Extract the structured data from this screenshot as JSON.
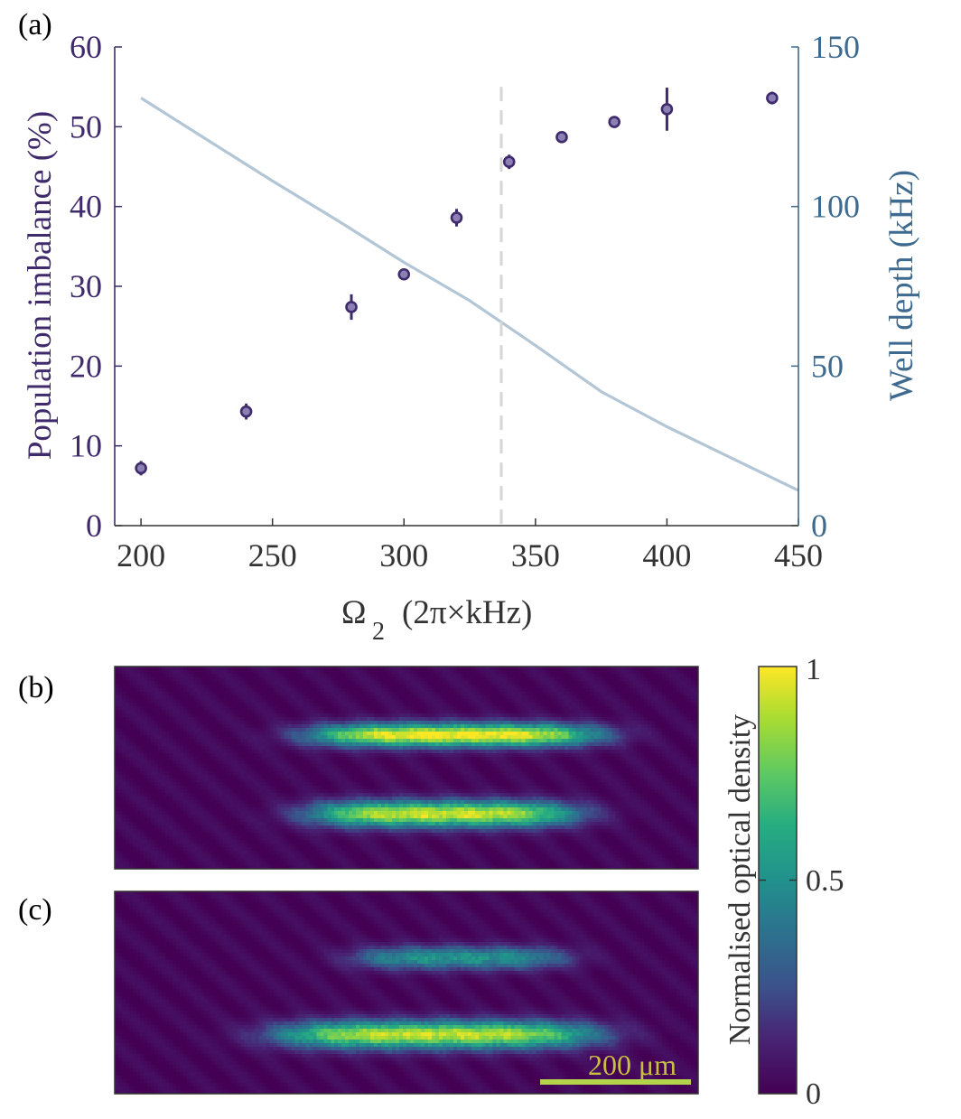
{
  "panels": {
    "a": "(a)",
    "b": "(b)",
    "c": "(c)"
  },
  "colors": {
    "left_axis": "#3f2b6b",
    "right_axis": "#3d6a8e",
    "marker_fill": "#8b7fb3",
    "curve": "#b3c6d6",
    "dashed": "#d6d6d6",
    "axis_dark": "#333333",
    "scalebar": "#b3d44a",
    "scale_text": "#c8c040"
  },
  "chart_data": [
    {
      "type": "scatter",
      "xlabel_symbol": "Ω",
      "xlabel_sub": "2",
      "xlabel_rest": "(2π×kHz)",
      "ylabel": "Population imbalance (%)",
      "y2label": "Well depth (kHz)",
      "xlim": [
        190,
        450
      ],
      "ylim": [
        0,
        60
      ],
      "y2lim": [
        0,
        150
      ],
      "xticks": [
        200,
        250,
        300,
        350,
        400,
        450
      ],
      "yticks": [
        0,
        10,
        20,
        30,
        40,
        50,
        60
      ],
      "y2ticks": [
        0,
        50,
        100,
        150
      ],
      "grid": false,
      "series": [
        {
          "name": "Population imbalance",
          "axis": "left",
          "x": [
            200,
            240,
            280,
            300,
            320,
            340,
            360,
            380,
            400,
            440
          ],
          "y": [
            7.2,
            14.3,
            27.4,
            31.5,
            38.6,
            45.6,
            48.7,
            50.6,
            52.2,
            53.6
          ],
          "yerr": [
            0.9,
            1.0,
            1.6,
            0.6,
            1.1,
            0.9,
            0.6,
            0.6,
            2.7,
            0.8
          ]
        },
        {
          "name": "Well depth",
          "axis": "right",
          "x": [
            200,
            225,
            250,
            275,
            300,
            325,
            350,
            375,
            400,
            425,
            450
          ],
          "y": [
            134,
            121,
            108,
            95.5,
            82.5,
            70.5,
            56.5,
            42,
            31,
            21,
            11
          ]
        }
      ],
      "vline_x": 337
    },
    {
      "type": "heatmap",
      "colorbar_label": "Normalised optical density",
      "colorbar_ticks": [
        "0",
        "0.5",
        "1"
      ],
      "colorbar_range": [
        0,
        1
      ],
      "scalebar_label": "200 μm",
      "images": [
        {
          "panel": "b",
          "blobs": [
            {
              "cx": 0.58,
              "cy": 0.33,
              "rx": 0.28,
              "ry": 0.075,
              "peak": 1.0
            },
            {
              "cx": 0.56,
              "cy": 0.72,
              "rx": 0.26,
              "ry": 0.085,
              "peak": 0.92
            }
          ]
        },
        {
          "panel": "c",
          "blobs": [
            {
              "cx": 0.59,
              "cy": 0.32,
              "rx": 0.21,
              "ry": 0.075,
              "peak": 0.5
            },
            {
              "cx": 0.55,
              "cy": 0.7,
              "rx": 0.31,
              "ry": 0.09,
              "peak": 0.9
            }
          ]
        }
      ]
    }
  ]
}
